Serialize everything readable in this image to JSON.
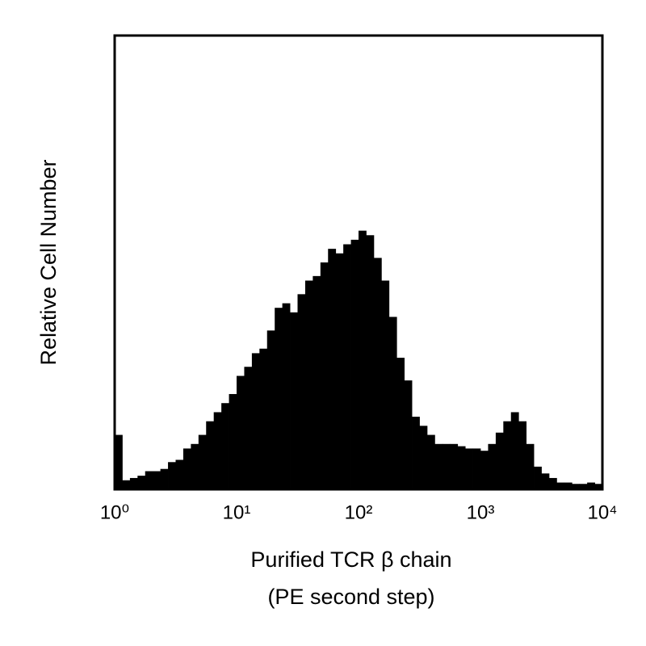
{
  "chart_data": {
    "type": "histogram",
    "xlabel": [
      "Purified TCR β chain",
      "(PE second step)"
    ],
    "ylabel": "Relative Cell Number",
    "xscale": "log",
    "color": "#000000",
    "xlim": [
      1,
      10000
    ],
    "ylim": [
      0,
      100
    ],
    "xticks": [
      {
        "value": 1,
        "label": "10⁰"
      },
      {
        "value": 10,
        "label": "10¹"
      },
      {
        "value": 100,
        "label": "10²"
      },
      {
        "value": 1000,
        "label": "10³"
      },
      {
        "value": 10000,
        "label": "10⁴"
      }
    ],
    "bins": [
      1,
      1.155,
      1.334,
      1.54,
      1.778,
      2.054,
      2.371,
      2.738,
      3.162,
      3.652,
      4.217,
      4.87,
      5.623,
      6.494,
      7.499,
      8.66,
      10,
      11.55,
      13.34,
      15.4,
      17.78,
      20.54,
      23.71,
      27.38,
      31.62,
      36.52,
      42.17,
      48.7,
      56.23,
      64.94,
      74.99,
      86.6,
      100,
      115.5,
      133.4,
      154,
      177.8,
      205.4,
      237.1,
      273.8,
      316.2,
      365.2,
      421.7,
      487,
      562.3,
      649.4,
      749.9,
      866,
      1000,
      1155,
      1334,
      1540,
      1778,
      2054,
      2371,
      2738,
      3162,
      3652,
      4217,
      4870,
      5623,
      6494,
      7499,
      8660,
      10000
    ],
    "values": [
      12,
      2,
      2.5,
      3,
      4,
      4,
      4.5,
      6,
      6.5,
      9,
      10,
      12,
      15,
      17,
      19,
      21,
      25,
      27,
      30,
      31,
      35,
      40,
      41,
      39,
      43,
      46,
      47,
      50,
      53,
      52,
      54,
      55,
      57,
      56,
      51,
      46,
      38,
      29,
      24,
      16,
      14,
      12,
      10,
      10,
      10,
      9.5,
      9,
      9,
      8.5,
      10,
      12.5,
      15,
      17,
      15,
      10,
      5,
      3.5,
      2.5,
      1.5,
      1.5,
      1.2,
      1.2,
      1.5,
      1.2
    ]
  }
}
